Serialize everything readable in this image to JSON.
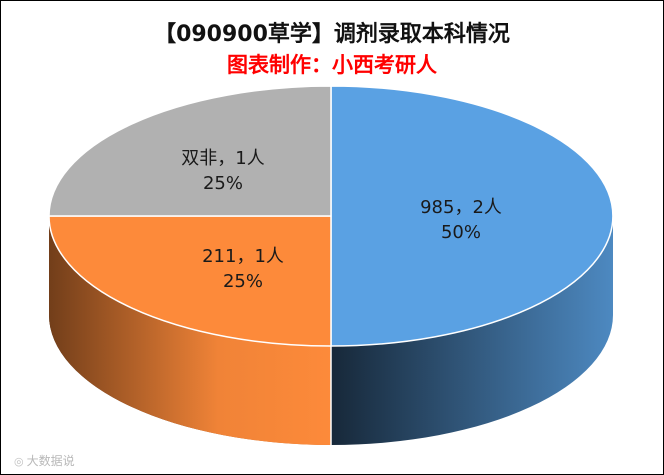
{
  "chart_data": {
    "type": "pie",
    "title": "【090900草学】调剂录取本科情况",
    "subtitle": "图表制作：小西考研人",
    "slices": [
      {
        "name": "985",
        "value": 2,
        "percent": "50%",
        "label": "985，2人",
        "color": "#5aa1e3"
      },
      {
        "name": "211",
        "value": 1,
        "percent": "25%",
        "label": "211，1人",
        "color": "#fd8a3a"
      },
      {
        "name": "双非",
        "value": 1,
        "percent": "25%",
        "label": "双非，1人",
        "color": "#b1b1b1"
      }
    ]
  },
  "watermark": {
    "icon": "weibo-logo-icon",
    "text": "大数据说"
  }
}
